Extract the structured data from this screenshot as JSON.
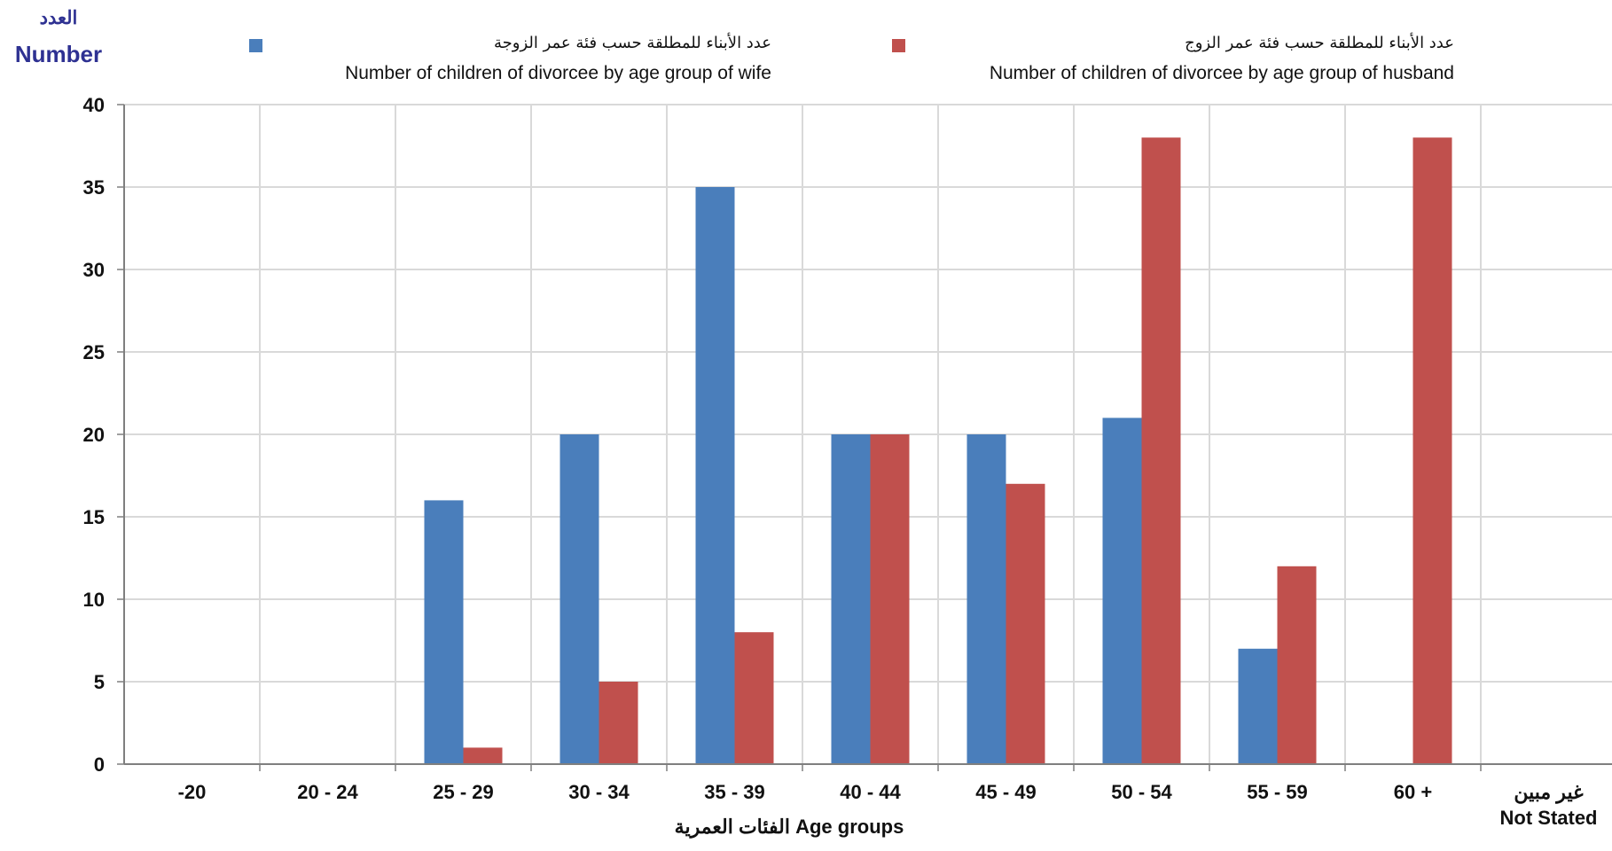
{
  "chart_data": {
    "type": "bar",
    "y_title_ar": "العدد",
    "y_title_en": "Number",
    "x_title": "الفئات العمرية Age groups",
    "categories": [
      "-20",
      "20 - 24",
      "25 - 29",
      "30 - 34",
      "35 - 39",
      "40 - 44",
      "45 - 49",
      "50 - 54",
      "55 - 59",
      "60 +",
      "غير مبين\nNot Stated"
    ],
    "ylim": [
      0,
      40
    ],
    "yticks": [
      0,
      5,
      10,
      15,
      20,
      25,
      30,
      35,
      40
    ],
    "grid": true,
    "legend_position": "top",
    "series": [
      {
        "name_ar": "عدد الأبناء للمطلقة حسب فئة عمر الزوجة",
        "name_en": "Number of children of divorcee by age group of wife",
        "color": "#4a7ebb",
        "values": [
          0,
          0,
          16,
          20,
          35,
          20,
          20,
          21,
          7,
          0,
          0
        ]
      },
      {
        "name_ar": "عدد الأبناء للمطلقة حسب فئة عمر الزوج",
        "name_en": "Number of children of divorcee by age group of husband",
        "color": "#c0504d",
        "values": [
          0,
          0,
          1,
          5,
          8,
          20,
          17,
          38,
          12,
          38,
          0
        ]
      }
    ]
  }
}
